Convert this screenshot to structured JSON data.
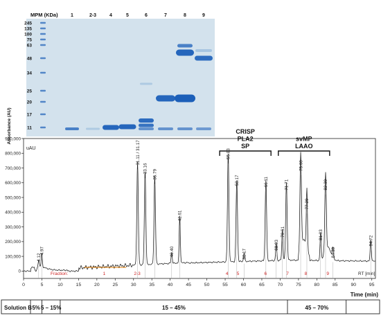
{
  "gel": {
    "header_mpm": "MPM (KDa)",
    "lane_labels": [
      "1",
      "2-3",
      "4",
      "5",
      "6",
      "7",
      "8",
      "9"
    ],
    "mw_markers": [
      "245",
      "135",
      "100",
      "75",
      "63",
      "48",
      "34",
      "25",
      "20",
      "17",
      "11"
    ],
    "colors": {
      "background": "#d3e2ed",
      "band": "#1b5fb9",
      "faint": "#8ab2d8"
    }
  },
  "chart_data": {
    "type": "line",
    "title": "",
    "xlabel": "RT [min]",
    "ylabel": "Absorbance (AU)",
    "y_unit_label": "uAU",
    "xlim": [
      0,
      96
    ],
    "ylim": [
      -50000,
      900000
    ],
    "x_ticks": [
      0,
      5,
      10,
      15,
      20,
      25,
      30,
      35,
      40,
      45,
      50,
      55,
      60,
      65,
      70,
      75,
      80,
      85,
      90,
      95
    ],
    "y_ticks": [
      {
        "value": 900000,
        "label": "900,000"
      },
      {
        "value": 800000,
        "label": "800,000"
      },
      {
        "value": 700000,
        "label": "700,000"
      },
      {
        "value": 600000,
        "label": "600,000"
      },
      {
        "value": 500000,
        "label": "500,000"
      },
      {
        "value": 400000,
        "label": "400,000"
      },
      {
        "value": 300000,
        "label": "300,000"
      },
      {
        "value": 200000,
        "label": "200,000"
      },
      {
        "value": 100000,
        "label": "100,000"
      },
      {
        "value": 0,
        "label": "0"
      }
    ],
    "peaks": [
      {
        "label": "4.12",
        "rt": 4.12,
        "height": 45000
      },
      {
        "label": "4.97",
        "rt": 4.97,
        "height": 90000
      },
      {
        "label": "31.11 / 31.17",
        "rt": 31.1,
        "height": 700000
      },
      {
        "label": "33.16",
        "rt": 33.16,
        "height": 640000
      },
      {
        "label": "35.79",
        "rt": 35.79,
        "height": 600000
      },
      {
        "label": "40.40",
        "rt": 40.4,
        "height": 75000
      },
      {
        "label": "42.61",
        "rt": 42.61,
        "height": 320000
      },
      {
        "label": "55.83",
        "rt": 55.83,
        "height": 740000
      },
      {
        "label": "58.17",
        "rt": 58.17,
        "height": 560000
      },
      {
        "label": "60.17",
        "rt": 60.17,
        "height": 60000
      },
      {
        "label": "66.11",
        "rt": 66.11,
        "height": 550000
      },
      {
        "label": "68.93",
        "rt": 68.93,
        "height": 120000
      },
      {
        "label": "70.61",
        "rt": 70.61,
        "height": 210000
      },
      {
        "label": "71.71",
        "rt": 71.71,
        "height": 530000
      },
      {
        "label": "75.60",
        "rt": 75.6,
        "height": 660000
      },
      {
        "label": "77.29",
        "rt": 77.29,
        "height": 400000
      },
      {
        "label": "81.03",
        "rt": 81.03,
        "height": 190000
      },
      {
        "label": "82.39",
        "rt": 82.39,
        "height": 530000
      },
      {
        "label": "84.39",
        "rt": 84.39,
        "height": 70000
      },
      {
        "label": "94.72",
        "rt": 94.72,
        "height": 150000
      }
    ],
    "fraction_label": "Fraction:",
    "fractions": [
      {
        "label": "1",
        "rt": 22
      },
      {
        "label": "2-3",
        "rt": 31
      },
      {
        "label": "4",
        "rt": 55.5
      },
      {
        "label": "5",
        "rt": 58.5
      },
      {
        "label": "6",
        "rt": 66
      },
      {
        "label": "7",
        "rt": 72
      },
      {
        "label": "8",
        "rt": 77
      },
      {
        "label": "9",
        "rt": 83
      }
    ],
    "brackets": [
      {
        "lines": [
          "CRISP",
          "PLA2",
          "SP"
        ],
        "x_start": 53.5,
        "x_end": 67.5
      },
      {
        "lines": [
          "svMP",
          "LAAO"
        ],
        "x_start": 69.5,
        "x_end": 83.5
      }
    ],
    "time_axis_label": "Time (min)",
    "gradient": {
      "row_label": "Solution B",
      "segments": [
        {
          "label": "5%",
          "from": 0,
          "to": 5
        },
        {
          "label": "5 – 15%",
          "from": 5,
          "to": 10
        },
        {
          "label": "15 – 45%",
          "from": 10,
          "to": 72
        },
        {
          "label": "45 – 70%",
          "from": 72,
          "to": 88
        },
        {
          "label": "",
          "from": 88,
          "to": 96
        }
      ]
    },
    "grid": false,
    "legend": "none",
    "colors": {
      "trace": "#1a1a1a",
      "fraction": "#cc1f1f",
      "fraction_bar": "#e07b00"
    }
  }
}
